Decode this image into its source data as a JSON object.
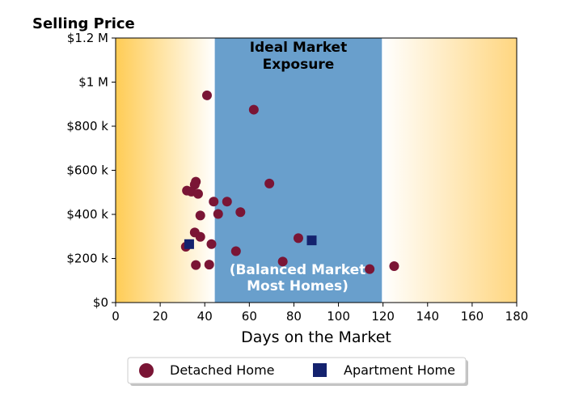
{
  "chart_data": {
    "type": "scatter",
    "title": "Selling Price",
    "xlabel": "Days on the Market",
    "ylabel": "",
    "xlim": [
      0,
      180
    ],
    "ylim": [
      0,
      1200000
    ],
    "x_ticks": [
      0,
      20,
      40,
      60,
      80,
      100,
      120,
      140,
      160,
      180
    ],
    "x_tick_labels": [
      "0",
      "20",
      "40",
      "60",
      "80",
      "100",
      "120",
      "140",
      "160",
      "180"
    ],
    "y_ticks": [
      0,
      200000,
      400000,
      600000,
      800000,
      1000000,
      1200000
    ],
    "y_tick_labels": [
      "$0",
      "$200 k",
      "$400 k",
      "$600 k",
      "$800 k",
      "$1 M",
      "$1.2 M"
    ],
    "bands": [
      {
        "x_range": [
          44.5,
          119.5
        ],
        "color": "#699fcc",
        "label_top": [
          "Ideal Market",
          "Exposure"
        ],
        "label_bottom": [
          "(Balanced Market",
          "Most Homes)"
        ]
      }
    ],
    "background_gradient_color": "#ffcc55",
    "series": [
      {
        "name": "Detached Home",
        "marker": "circle",
        "color": "#7a1535",
        "points": [
          [
            41,
            940000
          ],
          [
            62,
            875000
          ],
          [
            69,
            540000
          ],
          [
            36,
            548000
          ],
          [
            35.5,
            535000
          ],
          [
            32,
            508000
          ],
          [
            34,
            503000
          ],
          [
            37,
            493000
          ],
          [
            44,
            458000
          ],
          [
            50,
            458000
          ],
          [
            46,
            402000
          ],
          [
            56,
            410000
          ],
          [
            38,
            395000
          ],
          [
            35.5,
            318000
          ],
          [
            38,
            298000
          ],
          [
            82,
            292000
          ],
          [
            31.5,
            253000
          ],
          [
            43,
            265000
          ],
          [
            54,
            233000
          ],
          [
            75,
            186000
          ],
          [
            36,
            170000
          ],
          [
            42,
            172000
          ],
          [
            114,
            152000
          ],
          [
            125,
            165000
          ]
        ]
      },
      {
        "name": "Apartment Home",
        "marker": "square",
        "color": "#14226e",
        "points": [
          [
            33,
            265000
          ],
          [
            88,
            282000
          ]
        ]
      }
    ],
    "legend_position": "bottom-center"
  }
}
